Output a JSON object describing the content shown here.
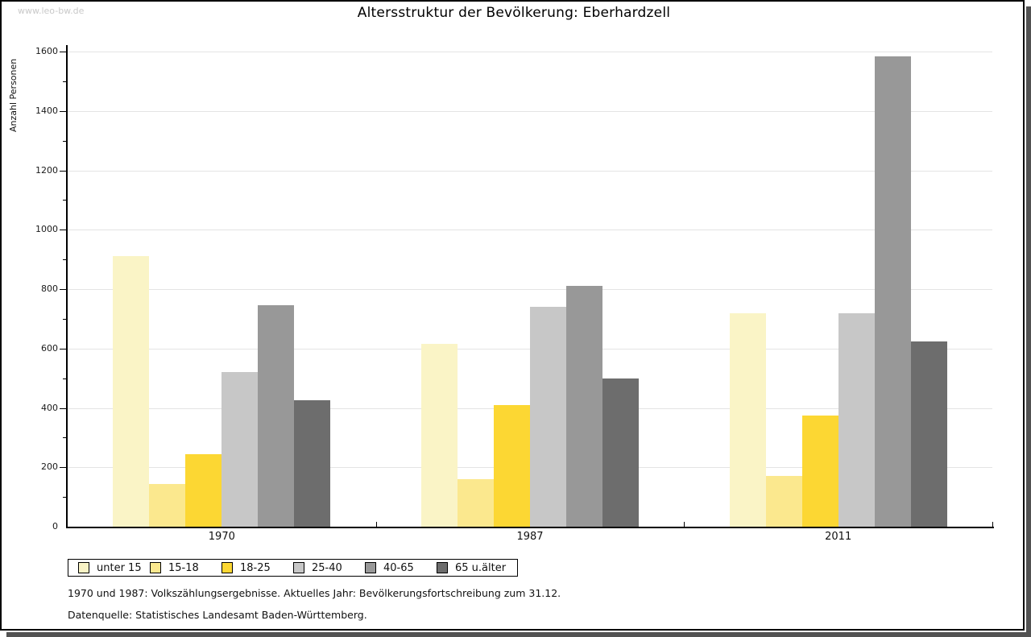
{
  "watermark": "www.leo-bw.de",
  "title": "Altersstruktur der Bevölkerung: Eberhardzell",
  "chart_data": {
    "type": "bar",
    "title": "Altersstruktur der Bevölkerung: Eberhardzell",
    "xlabel": "",
    "ylabel": "Anzahl Personen",
    "categories": [
      "1970",
      "1987",
      "2011"
    ],
    "series": [
      {
        "name": "unter 15",
        "color": "#FAF4C6",
        "values": [
          910,
          615,
          720
        ]
      },
      {
        "name": "15-18",
        "color": "#FBE88E",
        "values": [
          145,
          160,
          170
        ]
      },
      {
        "name": "18-25",
        "color": "#FCD733",
        "values": [
          245,
          410,
          375
        ]
      },
      {
        "name": "25-40",
        "color": "#C7C7C7",
        "values": [
          520,
          740,
          720
        ]
      },
      {
        "name": "40-65",
        "color": "#989898",
        "values": [
          745,
          810,
          1585
        ]
      },
      {
        "name": "65 u.älter",
        "color": "#6D6D6D",
        "values": [
          425,
          500,
          625
        ]
      }
    ],
    "ylim": [
      0,
      1600
    ],
    "ytick_major_step": 200,
    "ytick_minor_step": 100,
    "grid": true,
    "legend_position": "bottom-left"
  },
  "footnotes": [
    "1970 und 1987: Volkszählungsergebnisse. Aktuelles Jahr: Bevölkerungsfortschreibung zum 31.12.",
    "Datenquelle: Statistisches Landesamt Baden-Württemberg."
  ],
  "colors": {
    "frame_border": "#000000",
    "frame_shadow": "#525252",
    "gridline": "#e4e4e4",
    "watermark": "#c9c9c9"
  }
}
